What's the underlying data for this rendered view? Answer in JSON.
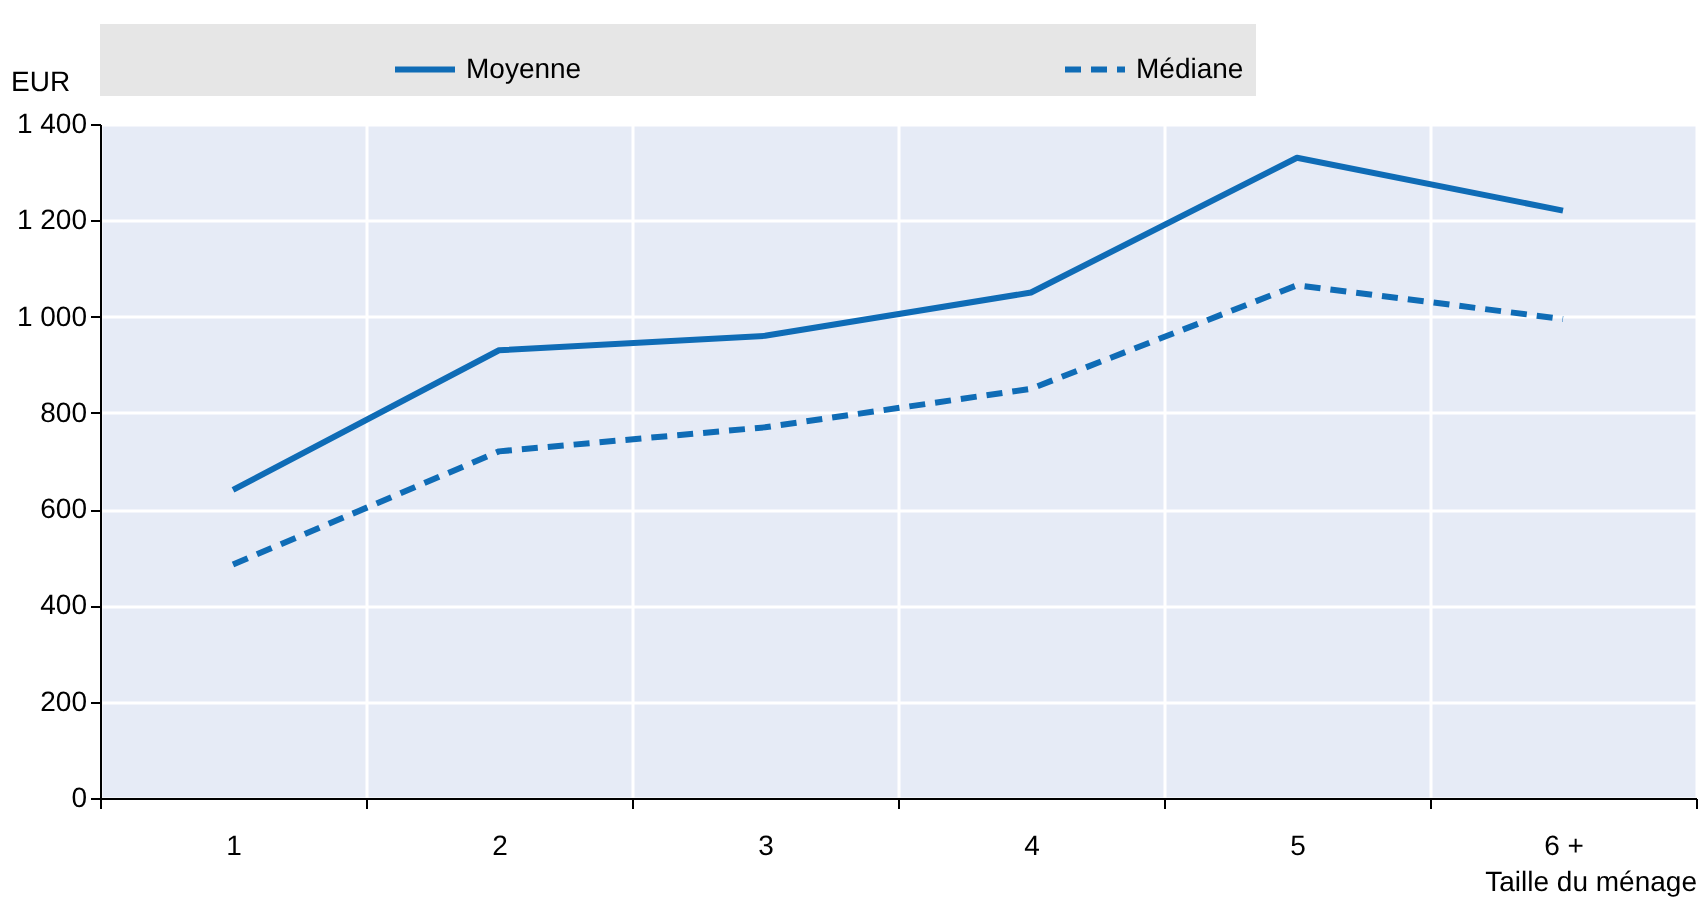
{
  "chart_data": {
    "type": "line",
    "xlabel": "Taille du ménage",
    "ylabel": "EUR",
    "categories": [
      "1",
      "2",
      "3",
      "4",
      "5",
      "6 +"
    ],
    "series": [
      {
        "name": "Moyenne",
        "color": "#0f6cb6",
        "line_style": "solid",
        "values": [
          640,
          930,
          960,
          1050,
          1330,
          1220
        ]
      },
      {
        "name": "Médiane",
        "color": "#0f6cb6",
        "line_style": "dashed",
        "values": [
          485,
          720,
          770,
          850,
          1065,
          995
        ]
      }
    ],
    "ylim": [
      0,
      1400
    ],
    "yticks": [
      0,
      200,
      400,
      600,
      800,
      1000,
      1200,
      1400
    ],
    "grid": true,
    "legend": "top",
    "marker": "none"
  }
}
